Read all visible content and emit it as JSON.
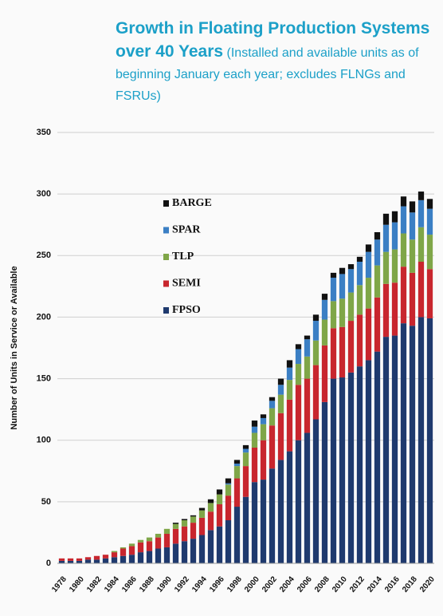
{
  "chart_data": {
    "type": "stacked_bar",
    "title": "Growth in Floating Production Systems over 40 Years",
    "subtitle": "(Installed and available units as of beginning January each year; excludes FLNGs and FSRUs)",
    "y_label": "Number of Units in Service  or Available",
    "categories": [
      "1978",
      null,
      "1980",
      null,
      "1982",
      null,
      "1984",
      null,
      "1986",
      null,
      "1988",
      null,
      "1990",
      null,
      "1992",
      null,
      "1994",
      null,
      "1996",
      null,
      "1998",
      null,
      "2000",
      null,
      "2002",
      null,
      "2004",
      null,
      "2006",
      null,
      "2008",
      null,
      "2010",
      null,
      "2012",
      null,
      "2014",
      null,
      "2016",
      null,
      "2018",
      null,
      "2020"
    ],
    "series": [
      {
        "name": "FPSO",
        "color": "#1f3a6e",
        "values": [
          2,
          2,
          2,
          3,
          3,
          4,
          5,
          6,
          7,
          9,
          10,
          12,
          13,
          16,
          18,
          20,
          23,
          27,
          30,
          35,
          46,
          54,
          66,
          68,
          77,
          84,
          91,
          100,
          106,
          117,
          131,
          150,
          151,
          155,
          160,
          165,
          172,
          184,
          185,
          195,
          193,
          200,
          199
        ]
      },
      {
        "name": "SEMI",
        "color": "#c8262e",
        "values": [
          2,
          2,
          2,
          2,
          3,
          3,
          4,
          6,
          7,
          8,
          8,
          9,
          11,
          12,
          12,
          13,
          14,
          15,
          18,
          20,
          23,
          25,
          28,
          32,
          35,
          38,
          42,
          45,
          44,
          44,
          46,
          41,
          41,
          42,
          42,
          42,
          44,
          43,
          43,
          46,
          43,
          45,
          40
        ]
      },
      {
        "name": "TLP",
        "color": "#7fa648",
        "values": [
          0,
          0,
          0,
          0,
          0,
          0,
          1,
          1,
          2,
          2,
          3,
          3,
          4,
          4,
          5,
          5,
          6,
          7,
          8,
          9,
          10,
          11,
          12,
          13,
          14,
          15,
          16,
          17,
          18,
          20,
          21,
          22,
          23,
          23,
          24,
          25,
          26,
          26,
          27,
          27,
          27,
          28,
          28
        ]
      },
      {
        "name": "SPAR",
        "color": "#3b7fc4",
        "values": [
          0,
          0,
          0,
          0,
          0,
          0,
          0,
          0,
          0,
          0,
          0,
          0,
          0,
          0,
          0,
          0,
          0,
          0,
          0,
          1,
          2,
          3,
          5,
          5,
          6,
          8,
          10,
          12,
          14,
          16,
          16,
          19,
          20,
          19,
          19,
          21,
          21,
          22,
          22,
          22,
          22,
          22,
          21
        ]
      },
      {
        "name": "BARGE",
        "color": "#111111",
        "values": [
          0,
          0,
          0,
          0,
          0,
          0,
          0,
          0,
          0,
          0,
          0,
          0,
          0,
          1,
          1,
          1,
          2,
          3,
          4,
          4,
          3,
          3,
          5,
          3,
          3,
          5,
          6,
          4,
          3,
          5,
          5,
          4,
          5,
          4,
          4,
          6,
          6,
          9,
          9,
          8,
          9,
          7,
          8
        ]
      }
    ],
    "ylim": [
      0,
      350
    ],
    "yticks": [
      0,
      50,
      100,
      150,
      200,
      250,
      300,
      350
    ],
    "grid": true,
    "legend": "top-left"
  }
}
